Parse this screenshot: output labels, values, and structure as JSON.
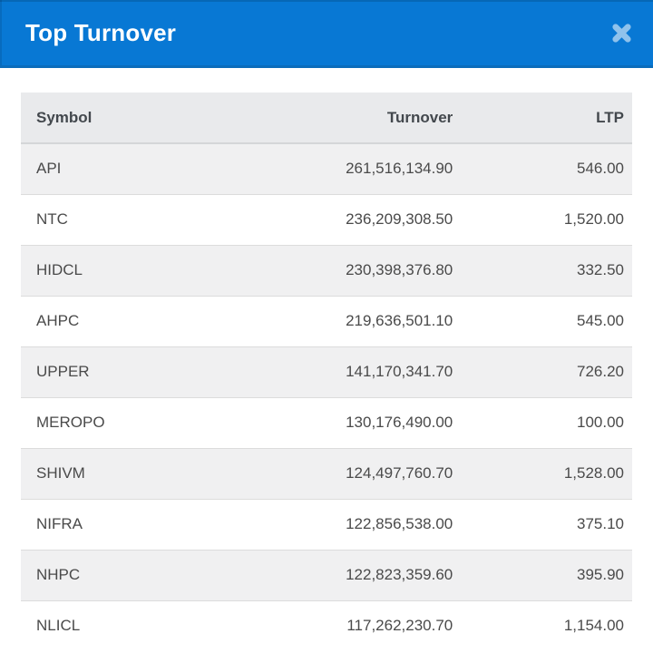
{
  "modal": {
    "title": "Top Turnover"
  },
  "table": {
    "columns": [
      {
        "key": "symbol",
        "label": "Symbol",
        "align": "left"
      },
      {
        "key": "turnover",
        "label": "Turnover",
        "align": "right"
      },
      {
        "key": "ltp",
        "label": "LTP",
        "align": "right"
      }
    ],
    "rows": [
      {
        "symbol": "API",
        "turnover": "261,516,134.90",
        "ltp": "546.00"
      },
      {
        "symbol": "NTC",
        "turnover": "236,209,308.50",
        "ltp": "1,520.00"
      },
      {
        "symbol": "HIDCL",
        "turnover": "230,398,376.80",
        "ltp": "332.50"
      },
      {
        "symbol": "AHPC",
        "turnover": "219,636,501.10",
        "ltp": "545.00"
      },
      {
        "symbol": "UPPER",
        "turnover": "141,170,341.70",
        "ltp": "726.20"
      },
      {
        "symbol": "MEROPO",
        "turnover": "130,176,490.00",
        "ltp": "100.00"
      },
      {
        "symbol": "SHIVM",
        "turnover": "124,497,760.70",
        "ltp": "1,528.00"
      },
      {
        "symbol": "NIFRA",
        "turnover": "122,856,538.00",
        "ltp": "375.10"
      },
      {
        "symbol": "NHPC",
        "turnover": "122,823,359.60",
        "ltp": "395.90"
      },
      {
        "symbol": "NLICL",
        "turnover": "117,262,230.70",
        "ltp": "1,154.00"
      }
    ]
  },
  "colors": {
    "header_bg": "#0878d4",
    "header_bg_edge": "#0b6cbb",
    "close_icon": "#8fc2ec",
    "table_header_bg": "#e9eaec",
    "row_stripe_bg": "#f0f0f1",
    "row_bg": "#ffffff",
    "border": "#dcdcdc",
    "header_border": "#d4d6d8",
    "text": "#4a4a4a",
    "header_text": "#43484d",
    "title_text": "#ffffff"
  }
}
